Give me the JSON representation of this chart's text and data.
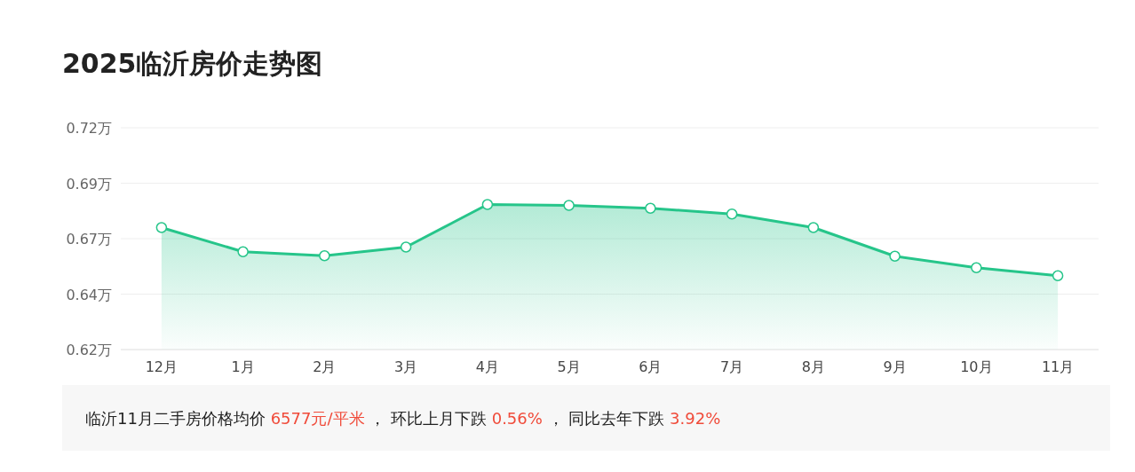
{
  "chart_data": {
    "type": "area",
    "title": "2025临沂房价走势图",
    "categories": [
      "12月",
      "1月",
      "2月",
      "3月",
      "4月",
      "5月",
      "6月",
      "7月",
      "8月",
      "9月",
      "10月",
      "11月"
    ],
    "series": [
      {
        "color": "#26c58a",
        "values": [
          0.675,
          0.6641,
          0.6623,
          0.6662,
          0.6854,
          0.685,
          0.6837,
          0.6811,
          0.675,
          0.6621,
          0.6569,
          0.6533
        ]
      }
    ],
    "ylim": [
      0.62,
      0.72
    ],
    "yticks": [
      {
        "value": 0.62,
        "label": "0.62万"
      },
      {
        "value": 0.645,
        "label": "0.64万"
      },
      {
        "value": 0.67,
        "label": "0.67万"
      },
      {
        "value": 0.695,
        "label": "0.69万"
      },
      {
        "value": 0.72,
        "label": "0.72万"
      }
    ],
    "grid": "y",
    "marker": "circle",
    "annotations": [
      "临沂11月二手房价格均价",
      "6577元/平米",
      "，  环比上月下跌",
      "0.56%",
      "，  同比去年下跌",
      "3.92%"
    ]
  }
}
